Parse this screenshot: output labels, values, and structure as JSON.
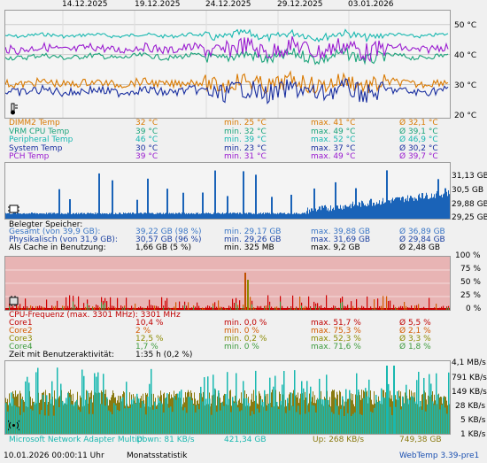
{
  "dates": [
    "14.12.2025",
    "19.12.2025",
    "24.12.2025",
    "29.12.2025",
    "03.01.2026"
  ],
  "temp": {
    "yticks": [
      "50 °C",
      "40 °C",
      "30 °C",
      "20 °C"
    ],
    "rows": [
      {
        "name": "DIMM2 Temp",
        "cur": "32 °C",
        "min": "min. 25 °C",
        "max": "max. 41 °C",
        "avg": "Ø 32,1 °C",
        "color": "#d97900"
      },
      {
        "name": "VRM CPU Temp",
        "cur": "39 °C",
        "min": "min. 32 °C",
        "max": "max. 49 °C",
        "avg": "Ø 39,1 °C",
        "color": "#1aa37a"
      },
      {
        "name": "Peripheral Temp",
        "cur": "46 °C",
        "min": "min. 39 °C",
        "max": "max. 52 °C",
        "avg": "Ø 46,9 °C",
        "color": "#19b8b0"
      },
      {
        "name": "System Temp",
        "cur": "30 °C",
        "min": "min. 23 °C",
        "max": "max. 37 °C",
        "avg": "Ø 30,2 °C",
        "color": "#1a2fa0"
      },
      {
        "name": "PCH Temp",
        "cur": "39 °C",
        "min": "min. 31 °C",
        "max": "max. 49 °C",
        "avg": "Ø 39,7 °C",
        "color": "#9a1bd0"
      }
    ]
  },
  "mem": {
    "yticks": [
      "31,13 GB",
      "30,5 GB",
      "29,88 GB",
      "29,25 GB"
    ],
    "title": "Belegter Speicher:",
    "rows": [
      {
        "name": "Gesamt (von 39,9 GB):",
        "cur": "39,22 GB (98 %)",
        "min": "min. 29,17 GB",
        "max": "max. 39,88 GB",
        "avg": "Ø 36,89 GB",
        "color": "#3a76c6"
      },
      {
        "name": "Physikalisch (von 31,9 GB):",
        "cur": "30,57 GB (96 %)",
        "min": "min. 29,26 GB",
        "max": "max. 31,69 GB",
        "avg": "Ø 29,84 GB",
        "color": "#1a3fa0"
      },
      {
        "name": "Als Cache in Benutzung:",
        "cur": "1,66 GB (5 %)",
        "min": "min. 325 MB",
        "max": "max. 9,2 GB",
        "avg": "Ø 2,48 GB",
        "color": "#000000"
      }
    ]
  },
  "cpu": {
    "yticks": [
      "100 %",
      "75 %",
      "50 %",
      "25 %",
      "0 %"
    ],
    "freq_label": "CPU-Frequenz (max. 3301 MHz):",
    "freq_value": "3301 MHz",
    "freq_color": "#c00000",
    "rows": [
      {
        "name": "Core1",
        "cur": "10,4 %",
        "min": "min. 0,0 %",
        "max": "max. 51,7 %",
        "avg": "Ø 5,5 %",
        "color": "#c00000"
      },
      {
        "name": "Core2",
        "cur": "2 %",
        "min": "min. 0 %",
        "max": "max. 75,3 %",
        "avg": "Ø 2,1 %",
        "color": "#d45a00"
      },
      {
        "name": "Core3",
        "cur": "12,5 %",
        "min": "min. 0,2 %",
        "max": "max. 52,3 %",
        "avg": "Ø 3,3 %",
        "color": "#8a8a00"
      },
      {
        "name": "Core4",
        "cur": "1,7 %",
        "min": "min. 0 %",
        "max": "max. 71,6 %",
        "avg": "Ø 1,8 %",
        "color": "#3c9a3c"
      }
    ],
    "activity_label": "Zeit mit Benutzeraktivität:",
    "activity_value": "1:35 h (0,2 %)"
  },
  "net": {
    "yticks": [
      "4,1 MB/s",
      "791 KB/s",
      "149 KB/s",
      "28 KB/s",
      "5 KB/s",
      "1 KB/s"
    ],
    "adapter": "Microsoft Network Adapter Multipl",
    "down": "Down: 81 KB/s",
    "down_total": "421,34 GB",
    "up": "Up: 268 KB/s",
    "up_total": "749,38 GB",
    "down_color": "#19b8b0",
    "up_color": "#8a7a10"
  },
  "footer": {
    "timestamp": "10.01.2026 00:00:11 Uhr",
    "mode": "Monatsstatistik",
    "version": "WebTemp 3.39-pre1"
  }
}
